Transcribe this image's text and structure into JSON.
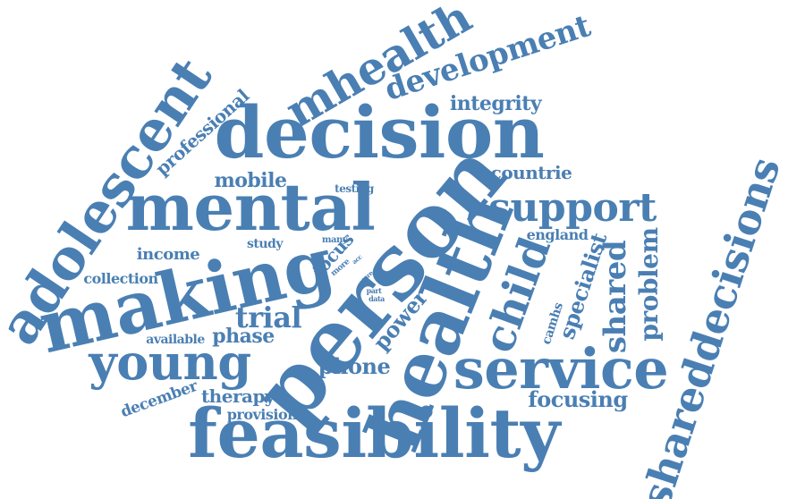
{
  "color": "#4a7fb3",
  "words": [
    {
      "text": "feasibility"
    },
    {
      "text": "decision"
    },
    {
      "text": "person"
    },
    {
      "text": "health"
    },
    {
      "text": "making"
    },
    {
      "text": "mental"
    },
    {
      "text": "adolescent"
    },
    {
      "text": "service"
    },
    {
      "text": "shareddecisions"
    },
    {
      "text": "mhealth"
    },
    {
      "text": "development"
    },
    {
      "text": "young"
    },
    {
      "text": "child"
    },
    {
      "text": "support"
    },
    {
      "text": "shared"
    },
    {
      "text": "problem"
    },
    {
      "text": "specialist"
    },
    {
      "text": "trial"
    },
    {
      "text": "phase"
    },
    {
      "text": "phone"
    },
    {
      "text": "power"
    },
    {
      "text": "therapy"
    },
    {
      "text": "focusing"
    },
    {
      "text": "integrity"
    },
    {
      "text": "mobile"
    },
    {
      "text": "professional"
    },
    {
      "text": "income"
    },
    {
      "text": "collection"
    },
    {
      "text": "countrie"
    },
    {
      "text": "england"
    },
    {
      "text": "camhs"
    },
    {
      "text": "december"
    },
    {
      "text": "provision"
    },
    {
      "text": "available"
    },
    {
      "text": "focus"
    },
    {
      "text": "study"
    },
    {
      "text": "testing"
    },
    {
      "text": "many"
    },
    {
      "text": "more"
    },
    {
      "text": "acc"
    },
    {
      "text": "care"
    },
    {
      "text": "part"
    },
    {
      "text": "data"
    }
  ]
}
